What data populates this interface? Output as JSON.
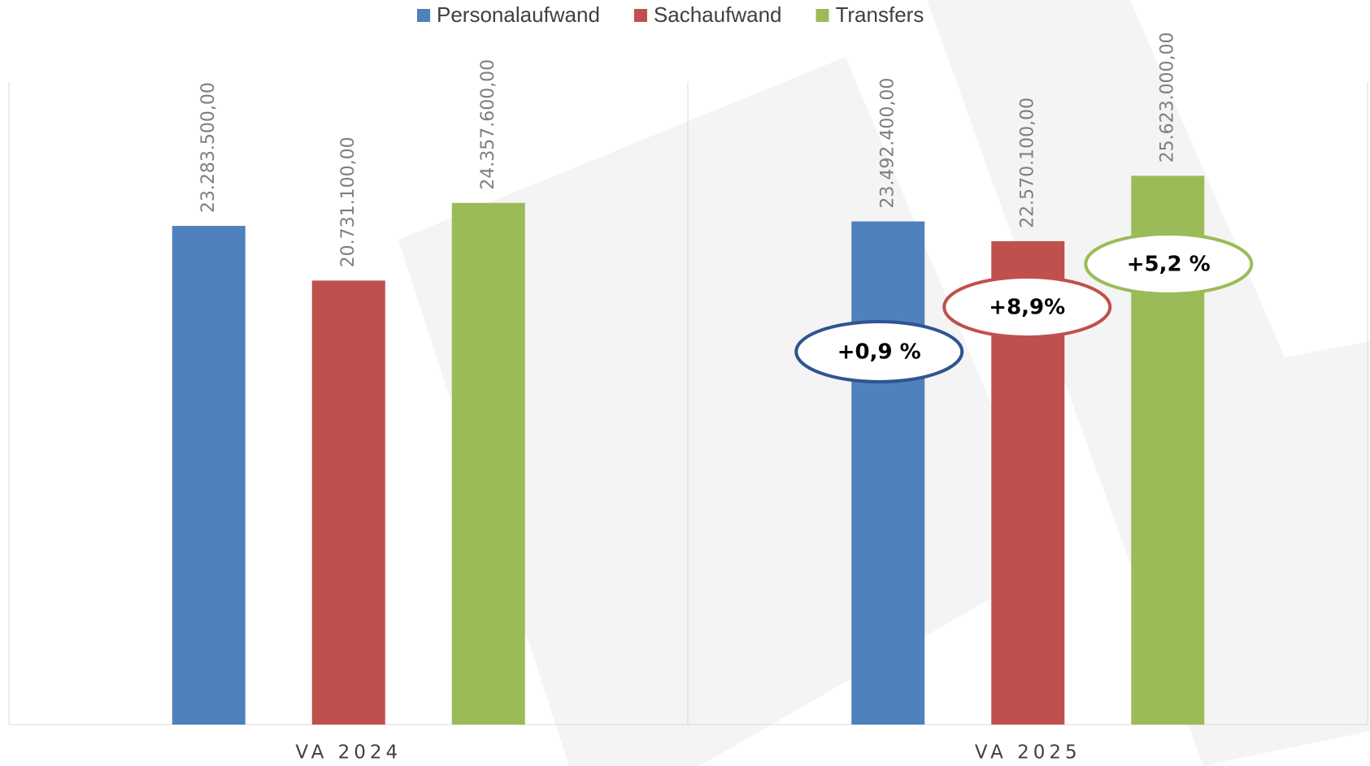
{
  "chart_data": {
    "type": "bar",
    "categories": [
      "VA 2024",
      "VA 2025"
    ],
    "series": [
      {
        "name": "Personalaufwand",
        "color": "#4f81bd",
        "values": [
          23283500,
          23492400
        ],
        "value_labels": [
          "23.283.500,00",
          "23.492.400,00"
        ]
      },
      {
        "name": "Sachaufwand",
        "color": "#c0504d",
        "values": [
          20731100,
          22570100
        ],
        "value_labels": [
          "20.731.100,00",
          "22.570.100,00"
        ]
      },
      {
        "name": "Transfers",
        "color": "#9bbb59",
        "values": [
          24357600,
          25623000
        ],
        "value_labels": [
          "24.357.600,00",
          "25.623.000,00"
        ]
      }
    ],
    "ylim": [
      0,
      30000000
    ],
    "annotations": [
      "+0,9 %",
      "+8,9%",
      "+5,2 %"
    ],
    "legend": "top"
  }
}
